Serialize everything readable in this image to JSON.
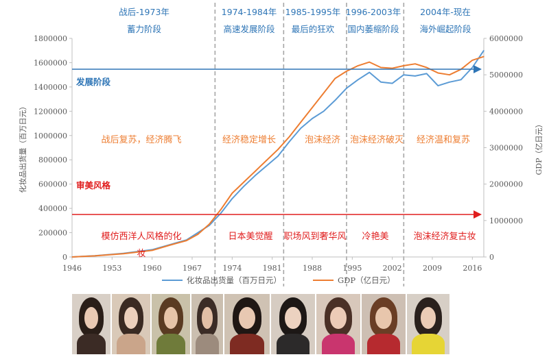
{
  "periods": [
    {
      "title_line1": "战后-1973年",
      "title_line2": "蓄力阶段"
    },
    {
      "title_line1": "1974-1984年",
      "title_line2": "高速发展阶段"
    },
    {
      "title_line1": "1985-1995年",
      "title_line2": "最后的狂欢"
    },
    {
      "title_line1": "1996-2003年",
      "title_line2": "国内萎缩阶段"
    },
    {
      "title_line1": "2004年-现在",
      "title_line2": "海外崛起阶段"
    }
  ],
  "stage_labels": {
    "development": "发展阶段",
    "aesthetic": "审美风格"
  },
  "economy_labels": [
    "战后复苏，经济腾飞",
    "经济稳定增长",
    "泡沫经济",
    "泡沫经济破灭",
    "经济温和复苏"
  ],
  "style_labels": [
    {
      "line1": "模仿西洋人风格的化",
      "line2": "妆"
    },
    {
      "line1": "日本美觉醒",
      "line2": ""
    },
    {
      "line1": "职场风到奢华风",
      "line2": ""
    },
    {
      "line1": "冷艳美",
      "line2": ""
    },
    {
      "line1": "泡沫经济复古妆",
      "line2": ""
    }
  ],
  "colors": {
    "shipment": "#5b9bd5",
    "gdp": "#ed7d31",
    "period_title": "#2e75b6",
    "dev_arrow": "#2e75b6",
    "aes_arrow": "#e01e1e",
    "divider": "#a6a6a6"
  },
  "chart_data": {
    "type": "line",
    "xlabel": "",
    "ylabel": "化妆品出货量（百万日元）",
    "y2label": "GDP（亿日元）",
    "xlim": [
      1946,
      2018
    ],
    "ylim": [
      0,
      1800000
    ],
    "y2lim": [
      0,
      6000000
    ],
    "x_ticks": [
      "1946",
      "1953",
      "1960",
      "1967",
      "1974",
      "1981",
      "1988",
      "1995",
      "2002",
      "2009",
      "2016"
    ],
    "y_ticks": [
      "0",
      "200000",
      "400000",
      "600000",
      "800000",
      "1000000",
      "1200000",
      "1400000",
      "1600000",
      "1800000"
    ],
    "y2_ticks": [
      "0",
      "1000000",
      "2000000",
      "3000000",
      "4000000",
      "5000000",
      "6000000"
    ],
    "period_boundaries": [
      1971,
      1983,
      1994,
      2004
    ],
    "legend": "bottom-center",
    "grid": false,
    "series": [
      {
        "name": "化妆品出货量（百万日元）",
        "axis": "left",
        "x": [
          1946,
          1950,
          1955,
          1960,
          1963,
          1966,
          1968,
          1970,
          1972,
          1974,
          1976,
          1978,
          1980,
          1982,
          1984,
          1986,
          1988,
          1990,
          1992,
          1994,
          1996,
          1998,
          2000,
          2002,
          2004,
          2006,
          2008,
          2010,
          2012,
          2014,
          2016,
          2018
        ],
        "values": [
          0,
          10000,
          30000,
          60000,
          100000,
          140000,
          200000,
          260000,
          360000,
          480000,
          580000,
          670000,
          750000,
          830000,
          950000,
          1060000,
          1140000,
          1200000,
          1290000,
          1390000,
          1460000,
          1520000,
          1440000,
          1430000,
          1500000,
          1490000,
          1510000,
          1410000,
          1440000,
          1460000,
          1560000,
          1700000
        ]
      },
      {
        "name": "GDP（亿日元）",
        "axis": "right",
        "x": [
          1946,
          1950,
          1955,
          1960,
          1963,
          1966,
          1968,
          1970,
          1972,
          1974,
          1976,
          1978,
          1980,
          1982,
          1984,
          1986,
          1988,
          1990,
          1992,
          1994,
          1996,
          1998,
          2000,
          2002,
          2004,
          2006,
          2008,
          2010,
          2012,
          2014,
          2016,
          2018
        ],
        "values": [
          0,
          30000,
          90000,
          180000,
          320000,
          450000,
          620000,
          900000,
          1300000,
          1750000,
          2050000,
          2350000,
          2650000,
          2950000,
          3300000,
          3700000,
          4100000,
          4500000,
          4900000,
          5100000,
          5250000,
          5350000,
          5200000,
          5180000,
          5250000,
          5300000,
          5200000,
          5050000,
          5000000,
          5150000,
          5400000,
          5500000
        ]
      }
    ]
  },
  "photos": [
    {
      "bg": "#d8cfc6",
      "hair": "#2a1e18",
      "face": "#e9c9b3",
      "body": "#3b2b25"
    },
    {
      "bg": "#d9c9b8",
      "hair": "#3a2a22",
      "face": "#ecd0bc",
      "body": "#caa58a"
    },
    {
      "bg": "#c9c1a9",
      "hair": "#5a3b22",
      "face": "#e6c4a8",
      "body": "#6f7b3a"
    },
    {
      "bg": "#cbbfb0",
      "hair": "#3b2c26",
      "face": "#e2bfa6",
      "body": "#9c8b7d"
    },
    {
      "bg": "#cfc2b3",
      "hair": "#1f1714",
      "face": "#e8c8b2",
      "body": "#7e2b22"
    },
    {
      "bg": "#d6ccc2",
      "hair": "#1d1816",
      "face": "#ecd2c0",
      "body": "#2c2a2a"
    },
    {
      "bg": "#d8c8bb",
      "hair": "#4a3026",
      "face": "#eccbb7",
      "body": "#c9356e"
    },
    {
      "bg": "#cdbfb3",
      "hair": "#6a3e25",
      "face": "#e8c6ac",
      "body": "#b62a2f"
    },
    {
      "bg": "#d7cfc6",
      "hair": "#2a211d",
      "face": "#ebccb6",
      "body": "#e6d535"
    }
  ]
}
